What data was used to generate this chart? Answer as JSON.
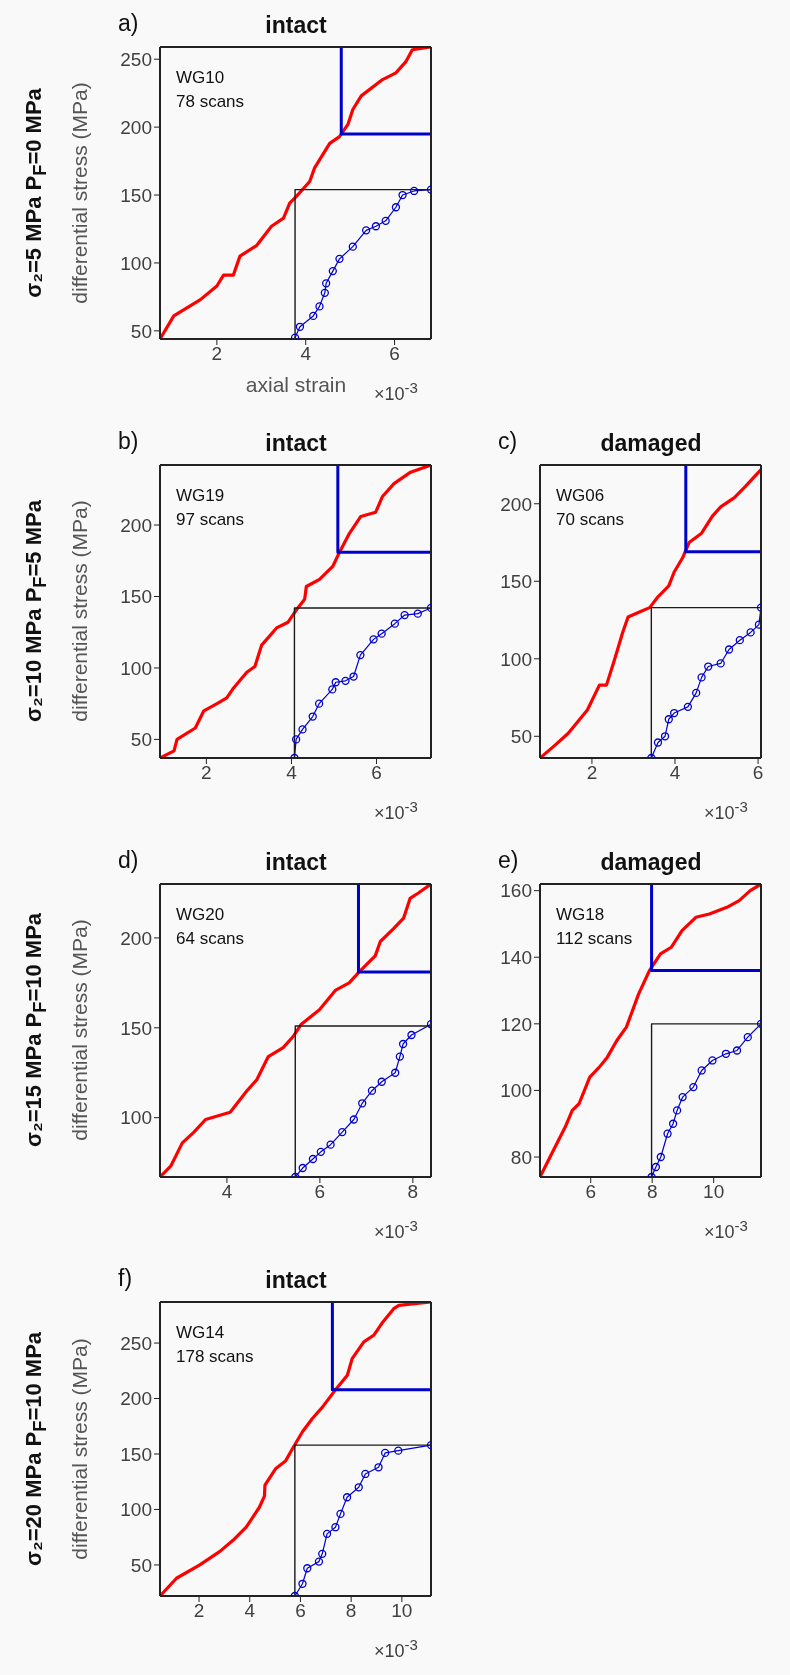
{
  "chart_data": [
    {
      "type": "line",
      "title": "intact",
      "xlabel": "axial strain",
      "ylabel": "differential stress (MPa)",
      "annotations": [
        "a)",
        "WG10",
        "78 scans",
        "×10$^{-3}$",
        "σ₂=5 MPa P$_{F}$=0 MPa"
      ],
      "xlim": [
        0.72,
        6.82
      ],
      "ylim": [
        44,
        259
      ],
      "xticks": [
        2,
        4,
        6
      ],
      "yticks": [
        50,
        100,
        150,
        200,
        250
      ],
      "marker": "none",
      "series": [
        {
          "color": "#ff0000",
          "x": [
            0.72,
            1.03,
            1.63,
            2.0,
            2.15,
            2.37,
            2.52,
            2.9,
            3.23,
            3.5,
            3.64,
            3.79,
            4.09,
            4.2,
            4.54,
            4.76,
            4.95,
            5.06,
            5.25,
            5.73,
            6.03,
            6.25,
            6.4,
            6.82
          ],
          "values": [
            44,
            61,
            73,
            83,
            91,
            91,
            105,
            113,
            127,
            133,
            144,
            149,
            160,
            170,
            188,
            193,
            202,
            213,
            223,
            235,
            240,
            248,
            257,
            259
          ]
        },
        {
          "color": "#0000cc",
          "marker": "circle",
          "x": [
            3.76,
            3.87,
            4.17,
            4.31,
            4.43,
            4.46,
            4.61,
            4.76,
            5.06,
            5.36,
            5.58,
            5.8,
            6.03,
            6.18,
            6.44,
            6.82
          ],
          "values": [
            45,
            53,
            61,
            68,
            78,
            85,
            94,
            103,
            112,
            124,
            127,
            131,
            141,
            150,
            153,
            154
          ]
        },
        {
          "color": "#0000cc",
          "x": [
            4.8,
            4.8,
            6.82
          ],
          "values": [
            259,
            195,
            195
          ]
        },
        {
          "color": "#1a1a1a",
          "x": [
            3.76,
            3.76,
            6.82
          ],
          "values": [
            44,
            154,
            154
          ]
        }
      ]
    },
    {
      "type": "line",
      "title": "intact",
      "ylabel": "differential stress (MPa)",
      "annotations": [
        "b)",
        "WG19",
        "97 scans",
        "×10$^{-3}$",
        "σ₂=10 MPa P$_{F}$=5 MPa"
      ],
      "xlim": [
        0.91,
        7.28
      ],
      "ylim": [
        37,
        242
      ],
      "xticks": [
        2,
        4,
        6
      ],
      "yticks": [
        50,
        100,
        150,
        200
      ],
      "marker": "none",
      "series": [
        {
          "color": "#ff0000",
          "x": [
            0.91,
            1.24,
            1.31,
            1.74,
            1.94,
            2.25,
            2.48,
            2.64,
            2.95,
            3.14,
            3.3,
            3.65,
            3.92,
            4.15,
            4.31,
            4.35,
            4.66,
            4.97,
            5.13,
            5.36,
            5.63,
            5.98,
            6.14,
            6.41,
            6.8,
            7.28
          ],
          "values": [
            37,
            42,
            50,
            58,
            70,
            75,
            79,
            86,
            97,
            101,
            116,
            128,
            132,
            142,
            148,
            157,
            162,
            171,
            181,
            194,
            206,
            209,
            220,
            229,
            237,
            242
          ]
        },
        {
          "color": "#0000cc",
          "marker": "circle",
          "x": [
            4.07,
            4.11,
            4.26,
            4.5,
            4.65,
            4.96,
            5.04,
            5.27,
            5.46,
            5.62,
            5.93,
            6.12,
            6.43,
            6.66,
            6.97,
            7.28
          ],
          "values": [
            37,
            50,
            57,
            66,
            75,
            85,
            90,
            91,
            94,
            109,
            120,
            124,
            131,
            137,
            138,
            142
          ]
        },
        {
          "color": "#0000cc",
          "x": [
            5.09,
            5.09,
            7.28
          ],
          "values": [
            242,
            181,
            181
          ]
        },
        {
          "color": "#1a1a1a",
          "x": [
            4.07,
            4.07,
            7.28
          ],
          "values": [
            37,
            142,
            142
          ]
        }
      ]
    },
    {
      "type": "line",
      "title": "damaged",
      "annotations": [
        "c)",
        "WG06",
        "70 scans",
        "×10$^{-3}$"
      ],
      "xlim": [
        0.75,
        6.07
      ],
      "ylim": [
        36,
        225
      ],
      "xticks": [
        2,
        4,
        6
      ],
      "yticks": [
        50,
        100,
        150,
        200
      ],
      "marker": "none",
      "series": [
        {
          "color": "#ff0000",
          "x": [
            0.75,
            1.1,
            1.43,
            1.89,
            2.18,
            2.35,
            2.54,
            2.74,
            2.87,
            3.13,
            3.39,
            3.59,
            3.85,
            3.98,
            4.18,
            4.34,
            4.64,
            4.9,
            5.1,
            5.43,
            5.69,
            6.07
          ],
          "values": [
            36,
            44,
            52,
            67,
            83,
            83,
            99,
            117,
            127,
            130,
            133,
            140,
            147,
            156,
            165,
            175,
            181,
            192,
            198,
            204,
            211,
            222
          ]
        },
        {
          "color": "#0000cc",
          "marker": "circle",
          "x": [
            3.43,
            3.59,
            3.76,
            3.85,
            3.98,
            4.31,
            4.51,
            4.64,
            4.8,
            5.1,
            5.3,
            5.56,
            5.82,
            6.02,
            6.07
          ],
          "values": [
            36,
            46,
            50,
            61,
            65,
            69,
            78,
            88,
            95,
            97,
            106,
            112,
            117,
            122,
            133
          ]
        },
        {
          "color": "#0000cc",
          "x": [
            4.26,
            4.26,
            6.07
          ],
          "values": [
            225,
            169,
            169
          ]
        },
        {
          "color": "#1a1a1a",
          "x": [
            3.43,
            3.43,
            6.07
          ],
          "values": [
            36,
            133,
            133
          ]
        }
      ]
    },
    {
      "type": "line",
      "title": "intact",
      "ylabel": "differential stress (MPa)",
      "annotations": [
        "d)",
        "WG20",
        "64 scans",
        "×10$^{-3}$",
        "σ₂=15 MPa P$_{F}$=10 MPa"
      ],
      "xlim": [
        2.56,
        8.39
      ],
      "ylim": [
        67,
        230
      ],
      "xticks": [
        4,
        6,
        8
      ],
      "yticks": [
        100,
        150,
        200
      ],
      "marker": "none",
      "series": [
        {
          "color": "#ff0000",
          "x": [
            2.56,
            2.79,
            3.04,
            3.29,
            3.54,
            4.07,
            4.25,
            4.43,
            4.64,
            4.89,
            5.21,
            5.42,
            5.6,
            5.99,
            6.34,
            6.63,
            6.84,
            7.19,
            7.3,
            7.58,
            7.8,
            7.94,
            8.12,
            8.39
          ],
          "values": [
            67,
            73,
            86,
            92,
            99,
            103,
            109,
            115,
            121,
            134,
            139,
            145,
            152,
            160,
            171,
            175,
            181,
            190,
            198,
            205,
            211,
            222,
            225,
            230
          ]
        },
        {
          "color": "#0000cc",
          "marker": "circle",
          "x": [
            5.47,
            5.63,
            5.85,
            6.02,
            6.23,
            6.48,
            6.73,
            6.91,
            7.12,
            7.33,
            7.62,
            7.72,
            7.79,
            7.97,
            8.39
          ],
          "values": [
            67,
            72,
            77,
            81,
            85,
            92,
            99,
            108,
            115,
            120,
            125,
            134,
            141,
            146,
            152
          ]
        },
        {
          "color": "#0000cc",
          "x": [
            6.83,
            6.83,
            8.39
          ],
          "values": [
            230,
            181,
            181
          ]
        },
        {
          "color": "#1a1a1a",
          "x": [
            5.47,
            5.47,
            8.39
          ],
          "values": [
            67,
            151,
            151
          ]
        }
      ]
    },
    {
      "type": "line",
      "title": "damaged",
      "annotations": [
        "e)",
        "WG18",
        "112 scans",
        "×10$^{-3}$"
      ],
      "xlim": [
        4.35,
        11.54
      ],
      "ylim": [
        74,
        162
      ],
      "xticks": [
        6,
        8,
        10
      ],
      "yticks": [
        80,
        100,
        120,
        140,
        160
      ],
      "marker": "none",
      "series": [
        {
          "color": "#ff0000",
          "x": [
            4.35,
            4.73,
            5.17,
            5.4,
            5.62,
            5.97,
            6.28,
            6.54,
            6.85,
            7.16,
            7.56,
            7.91,
            8.27,
            8.62,
            8.97,
            9.42,
            9.86,
            10.43,
            10.83,
            11.19,
            11.54
          ],
          "values": [
            74,
            81,
            89,
            94,
            96,
            104,
            107,
            110,
            115,
            119,
            129,
            136,
            141,
            143,
            148,
            152,
            153,
            155,
            157,
            160,
            162
          ]
        },
        {
          "color": "#0000cc",
          "marker": "circle",
          "x": [
            7.98,
            8.12,
            8.28,
            8.5,
            8.68,
            8.81,
            8.99,
            9.34,
            9.61,
            9.96,
            10.4,
            10.76,
            11.11,
            11.54
          ],
          "values": [
            74,
            77,
            80,
            87,
            90,
            94,
            98,
            101,
            106,
            109,
            111,
            112,
            116,
            120
          ]
        },
        {
          "color": "#0000cc",
          "x": [
            7.98,
            7.98,
            11.54
          ],
          "values": [
            162,
            136,
            136
          ]
        },
        {
          "color": "#1a1a1a",
          "x": [
            7.98,
            7.98,
            11.54
          ],
          "values": [
            74,
            120,
            120
          ]
        }
      ]
    },
    {
      "type": "line",
      "title": "intact",
      "ylabel": "differential stress (MPa)",
      "annotations": [
        "f)",
        "WG14",
        "178 scans",
        "×10$^{-3}$",
        "σ₂=20 MPa P$_{F}$=10 MPa"
      ],
      "xlim": [
        0.46,
        11.15
      ],
      "ylim": [
        22,
        287
      ],
      "xticks": [
        2,
        4,
        6,
        8,
        10
      ],
      "yticks": [
        50,
        100,
        150,
        200,
        250
      ],
      "marker": "none",
      "series": [
        {
          "color": "#ff0000",
          "x": [
            0.46,
            1.11,
            2.03,
            2.81,
            3.33,
            3.86,
            4.38,
            4.58,
            4.6,
            5.03,
            5.42,
            5.69,
            6.08,
            6.47,
            6.86,
            7.32,
            7.85,
            8.04,
            8.5,
            8.89,
            9.22,
            9.68,
            9.88,
            11.15
          ],
          "values": [
            22,
            38,
            50,
            62,
            72,
            84,
            102,
            112,
            122,
            137,
            144,
            155,
            170,
            182,
            192,
            206,
            221,
            236,
            251,
            257,
            268,
            281,
            284,
            287
          ]
        },
        {
          "color": "#0000cc",
          "marker": "circle",
          "x": [
            5.78,
            6.08,
            6.27,
            6.73,
            6.86,
            7.05,
            7.38,
            7.58,
            7.84,
            8.3,
            8.56,
            9.08,
            9.34,
            9.86,
            11.15
          ],
          "values": [
            22,
            33,
            47,
            53,
            60,
            78,
            84,
            96,
            111,
            120,
            132,
            138,
            151,
            153,
            158
          ]
        },
        {
          "color": "#0000cc",
          "x": [
            7.26,
            7.26,
            11.15
          ],
          "values": [
            287,
            208,
            208
          ]
        },
        {
          "color": "#1a1a1a",
          "x": [
            5.78,
            5.78,
            11.15
          ],
          "values": [
            22,
            158,
            158
          ]
        }
      ]
    }
  ]
}
